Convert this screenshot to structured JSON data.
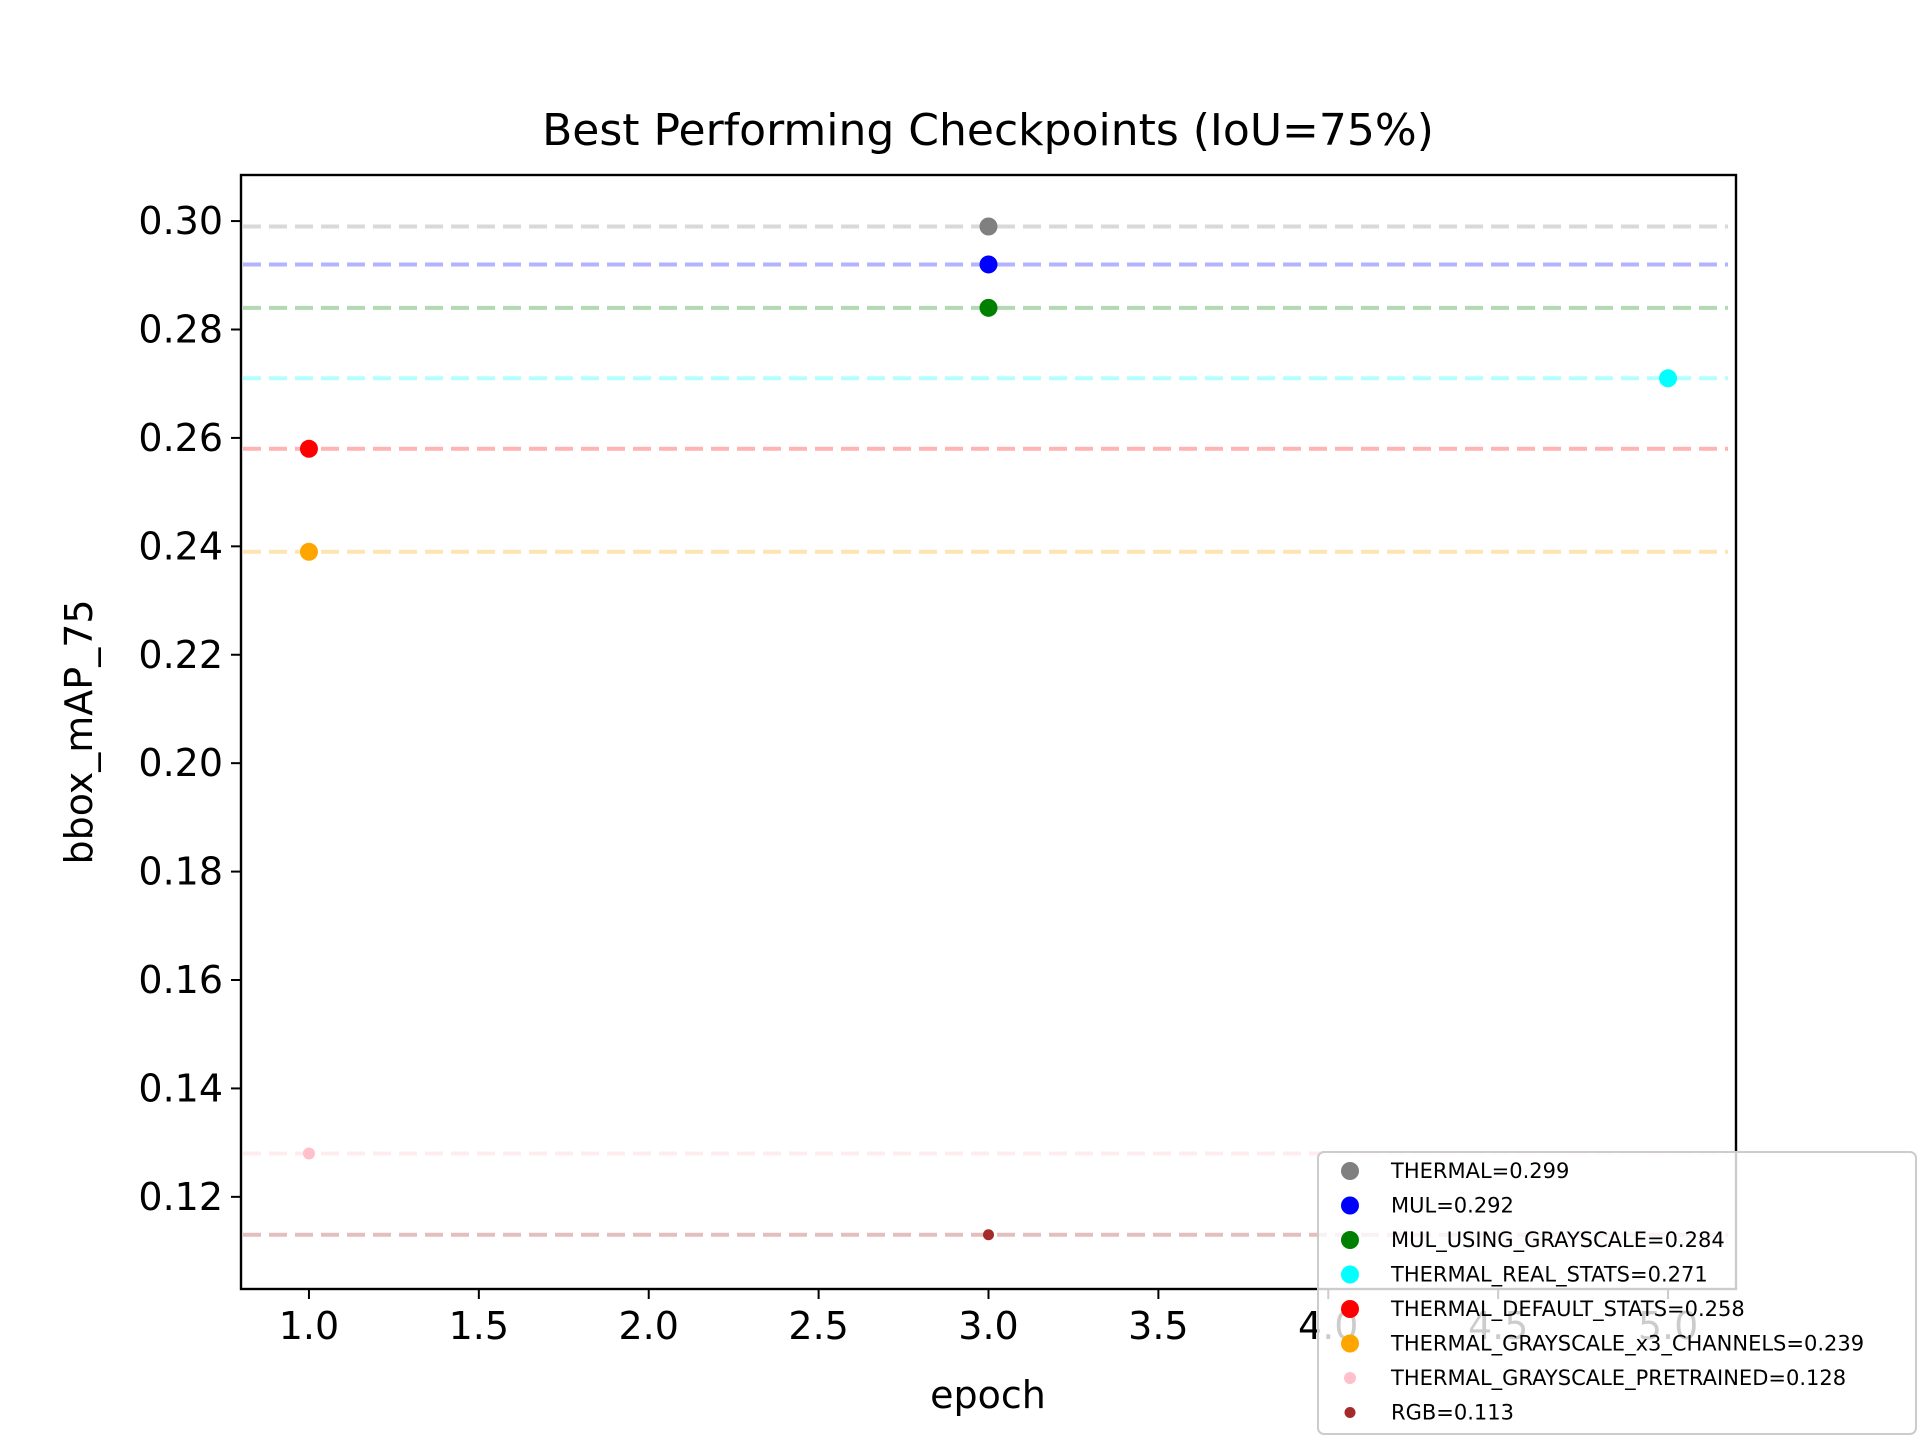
{
  "chart_data": {
    "type": "scatter",
    "title": "Best Performing Checkpoints (IoU=75%)",
    "xlabel": "epoch",
    "ylabel": "bbox_mAP_75",
    "xlim": [
      0.8,
      5.2
    ],
    "ylim": [
      0.103,
      0.3085
    ],
    "x_ticks": [
      1.0,
      1.5,
      2.0,
      2.5,
      3.0,
      3.5,
      4.0,
      4.5,
      5.0
    ],
    "x_tick_labels": [
      "1.0",
      "1.5",
      "2.0",
      "2.5",
      "3.0",
      "3.5",
      "4.0",
      "4.5",
      "5.0"
    ],
    "y_ticks": [
      0.12,
      0.14,
      0.16,
      0.18,
      0.2,
      0.22,
      0.24,
      0.26,
      0.28,
      0.3
    ],
    "y_tick_labels": [
      "0.12",
      "0.14",
      "0.16",
      "0.18",
      "0.20",
      "0.22",
      "0.24",
      "0.26",
      "0.28",
      "0.30"
    ],
    "grid": false,
    "legend_position": "bottom-right",
    "series": [
      {
        "name": "THERMAL=0.299",
        "color": "#808080",
        "line_color": "#d9d9d9",
        "x": [
          3.0
        ],
        "y": [
          0.299
        ]
      },
      {
        "name": "MUL=0.292",
        "color": "#0000ff",
        "line_color": "#b3b3ff",
        "x": [
          3.0
        ],
        "y": [
          0.292
        ]
      },
      {
        "name": "MUL_USING_GRAYSCALE=0.284",
        "color": "#008000",
        "line_color": "#b3d9b3",
        "x": [
          3.0
        ],
        "y": [
          0.284
        ]
      },
      {
        "name": "THERMAL_REAL_STATS=0.271",
        "color": "#00ffff",
        "line_color": "#b3ffff",
        "x": [
          5.0
        ],
        "y": [
          0.271
        ]
      },
      {
        "name": "THERMAL_DEFAULT_STATS=0.258",
        "color": "#ff0000",
        "line_color": "#ffb3b3",
        "x": [
          1.0
        ],
        "y": [
          0.258
        ]
      },
      {
        "name": "THERMAL_GRAYSCALE_x3_CHANNELS=0.239",
        "color": "#ffa500",
        "line_color": "#ffe4b3",
        "x": [
          1.0
        ],
        "y": [
          0.239
        ]
      },
      {
        "name": "THERMAL_GRAYSCALE_PRETRAINED=0.128",
        "color": "#ffc0cb",
        "line_color": "#ffecef",
        "x": [
          1.0
        ],
        "y": [
          0.128
        ]
      },
      {
        "name": "RGB=0.113",
        "color": "#a52a2a",
        "line_color": "#e4bfbf",
        "x": [
          3.0
        ],
        "y": [
          0.113
        ]
      }
    ]
  }
}
